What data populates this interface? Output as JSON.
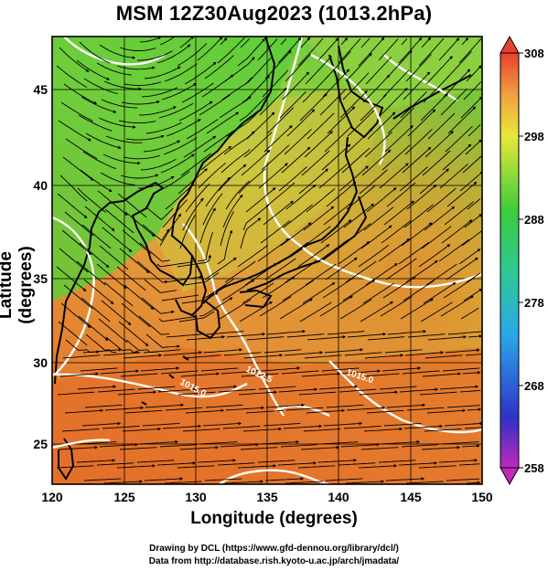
{
  "title": "MSM 12Z30Aug2023 (1013.2hPa)",
  "xaxis": {
    "label": "Longitude (degrees)",
    "ticks": [
      "120",
      "125",
      "130",
      "135",
      "140",
      "145",
      "150"
    ]
  },
  "yaxis": {
    "label": "Latitude  (degrees)",
    "ticks": [
      "25",
      "30",
      "35",
      "40",
      "45"
    ]
  },
  "colorbar": {
    "ticks": [
      "308",
      "298",
      "288",
      "278",
      "268",
      "258"
    ]
  },
  "contour_labels": [
    "1012.5",
    "1015.0"
  ],
  "credits": [
    "Drawing by DCL (https://www.gfd-dennou.org/library/dcl/)",
    "Data from http://database.rish.kyoto-u.ac.jp/arch/jmadata/"
  ],
  "colors": {
    "warm": "#e8772a",
    "mid": "#d8a33a",
    "green": "#58c83a",
    "yellow": "#e8e040",
    "contour": "#ffffff",
    "land": "#000000"
  },
  "chart_data": {
    "type": "heatmap",
    "title": "MSM 12Z30Aug2023 (1013.2hPa)",
    "xlabel": "Longitude (degrees)",
    "ylabel": "Latitude  (degrees)",
    "xlim": [
      120,
      150
    ],
    "ylim": [
      22.4,
      47.6
    ],
    "colorbar_range": [
      258,
      308
    ],
    "colorbar_ticks": [
      308,
      298,
      288,
      278,
      268,
      258
    ],
    "grid": true,
    "overlays": [
      "streamlines",
      "isobar contours",
      "coastlines"
    ]
  }
}
